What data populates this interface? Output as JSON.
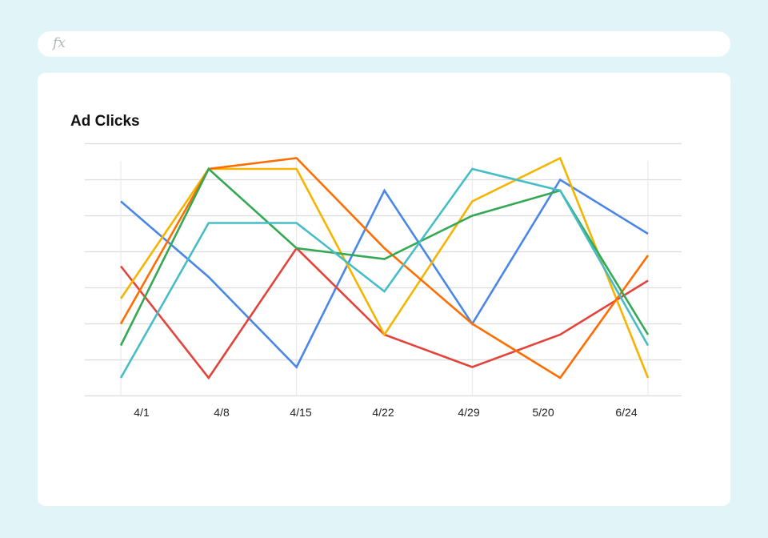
{
  "formula_bar": {
    "icon": "fx-icon",
    "label": "fx"
  },
  "chart_data": {
    "type": "line",
    "title": "Ad Clicks",
    "xlabel": "",
    "ylabel": "",
    "categories": [
      "4/1",
      "4/8",
      "4/15",
      "4/22",
      "4/29",
      "5/20",
      "6/24"
    ],
    "ylim": [
      0,
      7
    ],
    "grid": true,
    "legend": "none",
    "series": [
      {
        "color": "#4a86e8",
        "values": [
          5.4,
          3.3,
          0.8,
          5.7,
          2.0,
          6.0,
          4.5
        ]
      },
      {
        "color": "#e2433b",
        "values": [
          3.6,
          0.5,
          4.1,
          1.7,
          0.8,
          1.7,
          3.2
        ]
      },
      {
        "color": "#f4b400",
        "values": [
          2.7,
          6.3,
          6.3,
          1.7,
          5.4,
          6.6,
          0.5
        ]
      },
      {
        "color": "#ff6d01",
        "values": [
          2.0,
          6.3,
          6.6,
          4.1,
          2.0,
          0.5,
          3.9
        ]
      },
      {
        "color": "#34a853",
        "values": [
          1.4,
          6.3,
          4.1,
          3.8,
          5.0,
          5.7,
          1.7
        ]
      },
      {
        "color": "#46bdc6",
        "values": [
          0.5,
          4.8,
          4.8,
          2.9,
          6.3,
          5.7,
          1.4
        ]
      }
    ]
  }
}
